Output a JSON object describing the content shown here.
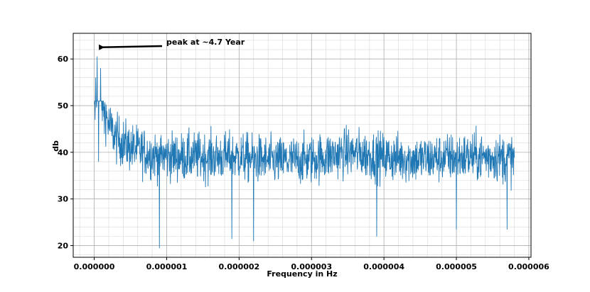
{
  "chart_data": {
    "type": "line",
    "title": "",
    "xlabel": "Frequency in Hz",
    "ylabel": "db",
    "xlim": [
      -2.9e-07,
      6.03e-06
    ],
    "ylim": [
      17.5,
      65.5
    ],
    "x_ticks": [
      0,
      1e-06,
      2e-06,
      3e-06,
      4e-06,
      5e-06,
      6e-06
    ],
    "x_tick_labels": [
      "0.000000",
      "0.000001",
      "0.000002",
      "0.000003",
      "0.000004",
      "0.000005",
      "0.000006"
    ],
    "y_ticks": [
      20,
      30,
      40,
      50,
      60
    ],
    "y_tick_labels": [
      "20",
      "30",
      "40",
      "50",
      "60"
    ],
    "grid": {
      "major": true,
      "minor": true
    },
    "series": [
      {
        "color": "#1f77b4",
        "x_start": 0,
        "x_end": 5.8e-06,
        "envelope_x": [
          0,
          5e-08,
          1e-07,
          2e-07,
          3e-07,
          5e-07,
          8e-07,
          1.2e-06,
          2e-06,
          2.5e-06,
          3e-06,
          3.5e-06,
          4e-06,
          4.5e-06,
          5e-06,
          5.5e-06,
          5.8e-06
        ],
        "envelope_mean": [
          48,
          55,
          51,
          46,
          43,
          41,
          39.5,
          39,
          39,
          38,
          38.5,
          40,
          39,
          38.5,
          39,
          39,
          38.5
        ],
        "peak_points": [
          {
            "x": 1e-08,
            "y": 47
          },
          {
            "x": 2e-08,
            "y": 56
          },
          {
            "x": 4e-08,
            "y": 60.5
          },
          {
            "x": 6e-08,
            "y": 38
          },
          {
            "x": 9e-08,
            "y": 58
          },
          {
            "x": 1.4e-07,
            "y": 44
          },
          {
            "x": 9e-07,
            "y": 19.5
          },
          {
            "x": 1.9e-06,
            "y": 21.5
          },
          {
            "x": 2.2e-06,
            "y": 21
          },
          {
            "x": 3.9e-06,
            "y": 22
          },
          {
            "x": 5e-06,
            "y": 23.5
          },
          {
            "x": 5.7e-06,
            "y": 23.5
          }
        ]
      }
    ],
    "annotations": [
      {
        "text": "peak at ~4.7 Year",
        "point": {
          "x": 4.5e-08,
          "y": 62.5
        }
      }
    ]
  }
}
